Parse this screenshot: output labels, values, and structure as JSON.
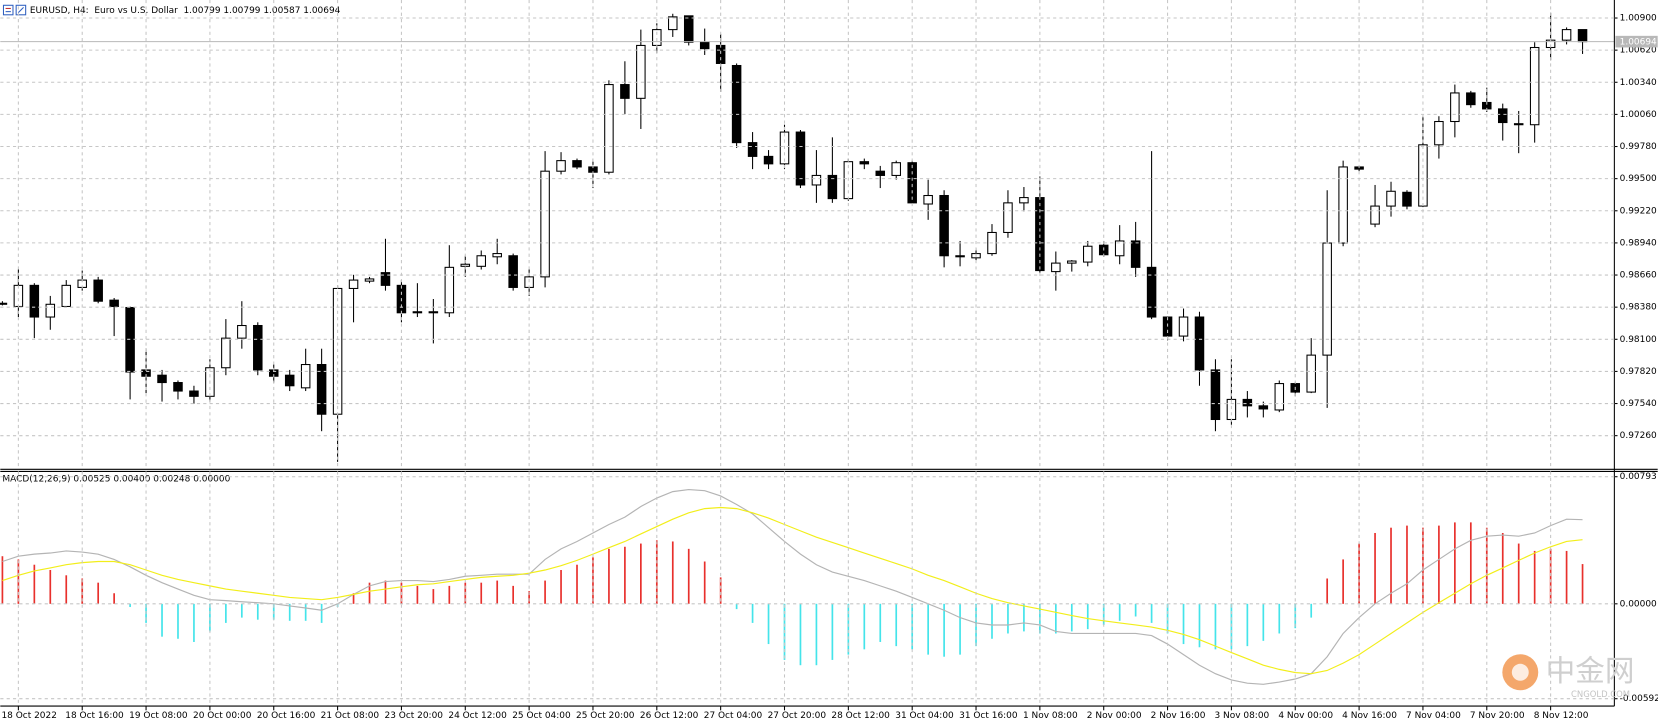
{
  "chart_data": [
    {
      "type": "candlestick",
      "title": "EURUSD, H4:  Euro vs U.S. Dollar  1.00799 1.00799 1.00587 1.00694",
      "categories": [
        null,
        "18 Oct 2022",
        null,
        null,
        null,
        "18 Oct 16:00",
        null,
        null,
        null,
        "19 Oct 08:00",
        null,
        null,
        null,
        "20 Oct 00:00",
        null,
        null,
        null,
        "20 Oct 16:00",
        null,
        null,
        null,
        "21 Oct 08:00",
        null,
        null,
        null,
        "23 Oct 20:00",
        null,
        null,
        null,
        "24 Oct 12:00",
        null,
        null,
        null,
        "25 Oct 04:00",
        null,
        null,
        null,
        "25 Oct 20:00",
        null,
        null,
        null,
        "26 Oct 12:00",
        null,
        null,
        null,
        "27 Oct 04:00",
        null,
        null,
        null,
        "27 Oct 20:00",
        null,
        null,
        null,
        "28 Oct 12:00",
        null,
        null,
        null,
        "31 Oct 04:00",
        null,
        null,
        null,
        "31 Oct 16:00",
        null,
        null,
        null,
        "1 Nov 08:00",
        null,
        null,
        null,
        "2 Nov 00:00",
        null,
        null,
        null,
        "2 Nov 16:00",
        null,
        null,
        null,
        "3 Nov 08:00",
        null,
        null,
        null,
        "4 Nov 00:00",
        null,
        null,
        null,
        "4 Nov 16:00",
        null,
        null,
        null,
        "7 Nov 04:00",
        null,
        null,
        null,
        "7 Nov 20:00",
        null,
        null,
        null,
        "8 Nov 12:00",
        null,
        null
      ],
      "open": [
        0.98414,
        0.98386,
        0.9857,
        0.98294,
        0.98386,
        0.98552,
        0.98616,
        0.98441,
        0.98377,
        0.97833,
        0.97787,
        0.97723,
        0.97649,
        0.97603,
        0.97852,
        0.9811,
        0.9822,
        0.97833,
        0.97787,
        0.97677,
        0.9788,
        0.97447,
        0.98543,
        0.98607,
        0.98681,
        0.9857,
        0.9834,
        0.98331,
        0.98331,
        0.98736,
        0.98736,
        0.98819,
        0.98828,
        0.98552,
        0.98644,
        0.99565,
        0.99657,
        0.99602,
        0.99556,
        1.0032,
        1.002,
        1.00661,
        1.00799,
        1.00919,
        1.00689,
        1.00661,
        1.00486,
        0.99814,
        0.99694,
        0.99629,
        0.99906,
        0.99445,
        0.99528,
        0.99326,
        0.99648,
        0.99565,
        0.99528,
        0.99639,
        0.99279,
        0.99353,
        0.98828,
        0.9881,
        0.98847,
        0.99031,
        0.99289,
        0.99335,
        0.9869,
        0.98764,
        0.98773,
        0.9892,
        0.98828,
        0.98957,
        0.98727,
        0.98294,
        0.98128,
        0.98294,
        0.97833,
        0.97401,
        0.97576,
        0.9752,
        0.97484,
        0.97714,
        0.9764,
        0.97962,
        0.98939,
        0.99602,
        0.99104,
        0.99261,
        0.99381,
        0.99261,
        0.99795,
        0.99998,
        1.00247,
        1.00164,
        1.00108,
        0.99979,
        0.9997,
        1.00643,
        1.00707,
        1.00799
      ],
      "high": [
        0.98432,
        0.98708,
        0.98589,
        0.98478,
        0.98616,
        0.98699,
        0.98644,
        0.9846,
        0.98386,
        0.98018,
        0.97833,
        0.97741,
        0.97695,
        0.97926,
        0.98276,
        0.98432,
        0.98248,
        0.9788,
        0.97833,
        0.98018,
        0.98018,
        0.9857,
        0.98662,
        0.98644,
        0.98976,
        0.98616,
        0.98589,
        0.98451,
        0.9892,
        0.98828,
        0.98874,
        0.98976,
        0.98847,
        0.98708,
        0.9974,
        0.99731,
        0.99675,
        0.99675,
        1.00357,
        1.00523,
        1.00799,
        1.00854,
        1.00937,
        1.00919,
        1.00808,
        1.00762,
        1.00504,
        0.99906,
        0.99749,
        0.9997,
        0.99924,
        0.99749,
        0.9986,
        0.99675,
        0.99675,
        0.99611,
        0.99657,
        0.99657,
        0.99491,
        0.99399,
        0.98957,
        0.98893,
        0.99104,
        0.99399,
        0.99427,
        0.99519,
        0.98865,
        0.98791,
        0.98957,
        0.98957,
        0.99095,
        0.99123,
        0.9974,
        0.98294,
        0.98368,
        0.9834,
        0.97926,
        0.97926,
        0.97649,
        0.97557,
        0.97741,
        0.97723,
        0.9811,
        0.99399,
        0.99657,
        0.99611,
        0.99445,
        0.99473,
        0.99399,
        1.00044,
        1.00044,
        1.0032,
        1.00265,
        1.00293,
        1.00154,
        1.0009,
        1.00689,
        1.00946,
        1.00818,
        1.00799
      ],
      "low": [
        0.98395,
        0.98294,
        0.9811,
        0.98183,
        0.98386,
        0.98524,
        0.98414,
        0.98128,
        0.97576,
        0.97631,
        0.97557,
        0.97576,
        0.97539,
        0.97557,
        0.97787,
        0.98018,
        0.97787,
        0.97723,
        0.97649,
        0.97649,
        0.97299,
        0.97032,
        0.98248,
        0.98589,
        0.98524,
        0.98248,
        0.98294,
        0.98064,
        0.98294,
        0.98644,
        0.98708,
        0.98754,
        0.98524,
        0.98478,
        0.98552,
        0.99537,
        0.99583,
        0.99418,
        0.99537,
        1.00062,
        0.99933,
        1.00596,
        1.00735,
        1.00661,
        1.00578,
        1.00256,
        0.99768,
        0.99583,
        0.99583,
        0.99583,
        0.99418,
        0.99289,
        0.99289,
        0.99307,
        0.99583,
        0.99418,
        0.99491,
        0.99279,
        0.99141,
        0.98727,
        0.98736,
        0.98782,
        0.98828,
        0.98985,
        0.99215,
        0.98681,
        0.98524,
        0.9869,
        0.98736,
        0.98819,
        0.98754,
        0.98644,
        0.98276,
        0.98091,
        0.98082,
        0.97695,
        0.97299,
        0.97355,
        0.97419,
        0.97419,
        0.97465,
        0.97603,
        0.97631,
        0.97502,
        0.98911,
        0.99565,
        0.99077,
        0.99169,
        0.99233,
        0.99252,
        0.99675,
        0.9986,
        1.00118,
        1.00081,
        0.99832,
        0.99722,
        0.99814,
        1.00532,
        1.0067,
        1.00587
      ],
      "close": [
        0.98405,
        0.9857,
        0.98294,
        0.98405,
        0.9857,
        0.98616,
        0.98432,
        0.98386,
        0.97815,
        0.97778,
        0.97723,
        0.97649,
        0.97603,
        0.97852,
        0.9811,
        0.9822,
        0.97833,
        0.97778,
        0.97695,
        0.9788,
        0.97447,
        0.98543,
        0.98616,
        0.98626,
        0.9857,
        0.98331,
        0.98331,
        0.9834,
        0.98727,
        0.98754,
        0.98828,
        0.98847,
        0.98552,
        0.98644,
        0.99565,
        0.99657,
        0.99602,
        0.99556,
        1.0032,
        1.002,
        1.00661,
        1.00799,
        1.0091,
        1.00689,
        1.00633,
        1.00504,
        0.99814,
        0.99694,
        0.99629,
        0.99906,
        0.99445,
        0.99528,
        0.99326,
        0.99648,
        0.99629,
        0.99528,
        0.99639,
        0.99289,
        0.99353,
        0.98828,
        0.98819,
        0.98847,
        0.99031,
        0.99289,
        0.99335,
        0.98699,
        0.98764,
        0.98782,
        0.98911,
        0.98837,
        0.98957,
        0.98727,
        0.98294,
        0.98128,
        0.98294,
        0.97833,
        0.97401,
        0.97576,
        0.9752,
        0.97493,
        0.97714,
        0.9764,
        0.97962,
        0.98939,
        0.99602,
        0.99583,
        0.99261,
        0.9939,
        0.99261,
        0.99795,
        0.99998,
        1.00247,
        1.00145,
        1.00108,
        0.99989,
        0.9997,
        1.00643,
        1.00707,
        1.00799,
        1.00694
      ],
      "up_color": "#ffffff",
      "down_color": "#000000",
      "wick_color": "#000000",
      "ylim": [
        0.96976,
        1.01057
      ],
      "yticks": [
        {
          "value": 1.009,
          "label": "1.00900"
        },
        {
          "value": 1.0062,
          "label": "1.00620"
        },
        {
          "value": 1.0034,
          "label": "1.00340"
        },
        {
          "value": 1.0006,
          "label": "1.00060"
        },
        {
          "value": 0.9978,
          "label": "0.99780"
        },
        {
          "value": 0.995,
          "label": "0.99500"
        },
        {
          "value": 0.9922,
          "label": "0.99220"
        },
        {
          "value": 0.9894,
          "label": "0.98940"
        },
        {
          "value": 0.9866,
          "label": "0.98660"
        },
        {
          "value": 0.9838,
          "label": "0.98380"
        },
        {
          "value": 0.981,
          "label": "0.98100"
        },
        {
          "value": 0.9782,
          "label": "0.97820"
        },
        {
          "value": 0.9754,
          "label": "0.97540"
        },
        {
          "value": 0.9726,
          "label": "0.97260"
        }
      ],
      "last_price": {
        "value": 1.00694,
        "label": "1.00694"
      },
      "grid": true
    },
    {
      "type": "macd",
      "title": "MACD(12,26,9) 0.00525 0.00400 0.00248 0.00000",
      "histogram": {
        "positive_color": "#e8302c",
        "negative_color": "#44e4ea",
        "values": [
          0.00297,
          0.00277,
          0.00244,
          0.00211,
          0.00178,
          0.00158,
          0.00132,
          0.00066,
          -0.0002,
          -0.00119,
          -0.00205,
          -0.00218,
          -0.00238,
          -0.00172,
          -0.00119,
          -0.00086,
          -0.00099,
          -0.00099,
          -0.00106,
          -0.00106,
          -0.00119,
          -0.0002,
          0.00066,
          0.00132,
          0.00145,
          0.00132,
          0.00112,
          0.00092,
          0.00112,
          0.00132,
          0.00132,
          0.00145,
          0.00112,
          0.00079,
          0.00145,
          0.00211,
          0.00244,
          0.0029,
          0.00343,
          0.00356,
          0.00376,
          0.00396,
          0.00389,
          0.00343,
          0.00264,
          0.00165,
          -0.00033,
          -0.00119,
          -0.00251,
          -0.0035,
          -0.00383,
          -0.00383,
          -0.0035,
          -0.00317,
          -0.00284,
          -0.00238,
          -0.00264,
          -0.00284,
          -0.00317,
          -0.0033,
          -0.00317,
          -0.00264,
          -0.00218,
          -0.00185,
          -0.00172,
          -0.00185,
          -0.00185,
          -0.00172,
          -0.00158,
          -0.00132,
          -0.00106,
          -0.00079,
          -0.00119,
          -0.00185,
          -0.00251,
          -0.00271,
          -0.00284,
          -0.00284,
          -0.00264,
          -0.00231,
          -0.00185,
          -0.00152,
          -0.00086,
          0.00158,
          0.00277,
          0.00376,
          0.00442,
          0.00475,
          0.00488,
          0.00475,
          0.00488,
          0.00508,
          0.00508,
          0.00475,
          0.00442,
          0.00376,
          0.0033,
          0.00343,
          0.0033,
          0.00248
        ]
      },
      "series": [
        {
          "color": "#b4b4b4",
          "values": [
            0.00264,
            0.00297,
            0.0031,
            0.00317,
            0.0033,
            0.00323,
            0.0031,
            0.00277,
            0.00231,
            0.00178,
            0.00132,
            0.00092,
            0.00053,
            0.00026,
            0.0002,
            0.00013,
            7e-05,
            0,
            -0.00013,
            -0.00026,
            -0.0004,
            0,
            0.00059,
            0.00112,
            0.00139,
            0.00145,
            0.00145,
            0.00139,
            0.00152,
            0.00172,
            0.00178,
            0.00185,
            0.00185,
            0.00185,
            0.00277,
            0.00343,
            0.00389,
            0.00442,
            0.00495,
            0.00541,
            0.00607,
            0.0066,
            0.007,
            0.00713,
            0.00706,
            0.00673,
            0.0062,
            0.00561,
            0.00475,
            0.00389,
            0.0031,
            0.00244,
            0.00198,
            0.00172,
            0.00145,
            0.00112,
            0.00079,
            0.0004,
            0,
            -0.0004,
            -0.00086,
            -0.00119,
            -0.00132,
            -0.00132,
            -0.00119,
            -0.00132,
            -0.00172,
            -0.00185,
            -0.00185,
            -0.00185,
            -0.00185,
            -0.00185,
            -0.00198,
            -0.00251,
            -0.00317,
            -0.00383,
            -0.00436,
            -0.00475,
            -0.00495,
            -0.00502,
            -0.00488,
            -0.00469,
            -0.00436,
            -0.0033,
            -0.00185,
            -0.00086,
            0,
            0.00066,
            0.00125,
            0.00211,
            0.00277,
            0.00343,
            0.00396,
            0.00422,
            0.00429,
            0.00422,
            0.00442,
            0.00488,
            0.00528,
            0.00525
          ]
        },
        {
          "color": "#f2ee1a",
          "values": [
            0.00145,
            0.00178,
            0.00205,
            0.00224,
            0.00244,
            0.00257,
            0.00264,
            0.00264,
            0.00244,
            0.00211,
            0.00178,
            0.00152,
            0.00132,
            0.00112,
            0.00092,
            0.00079,
            0.00066,
            0.00053,
            0.0004,
            0.00033,
            0.00026,
            0.0004,
            0.00059,
            0.00079,
            0.00092,
            0.00106,
            0.00119,
            0.00125,
            0.00139,
            0.00152,
            0.00165,
            0.00172,
            0.00178,
            0.00191,
            0.00211,
            0.00238,
            0.00271,
            0.0031,
            0.0035,
            0.00389,
            0.00436,
            0.00482,
            0.00528,
            0.00568,
            0.00594,
            0.00601,
            0.00594,
            0.00568,
            0.00535,
            0.00495,
            0.00455,
            0.00416,
            0.00383,
            0.0035,
            0.00317,
            0.00284,
            0.00251,
            0.00218,
            0.00178,
            0.00145,
            0.00106,
            0.00066,
            0.00033,
            7e-05,
            -0.00013,
            -0.00033,
            -0.00053,
            -0.00073,
            -0.00092,
            -0.00106,
            -0.00119,
            -0.00132,
            -0.00145,
            -0.00165,
            -0.00191,
            -0.00224,
            -0.00264,
            -0.00304,
            -0.00343,
            -0.00383,
            -0.00409,
            -0.00429,
            -0.00436,
            -0.00416,
            -0.0037,
            -0.00317,
            -0.00251,
            -0.00185,
            -0.00119,
            -0.00053,
            7e-05,
            0.00066,
            0.00125,
            0.00178,
            0.00224,
            0.00271,
            0.00317,
            0.00356,
            0.00389,
            0.004
          ]
        }
      ],
      "ylim": [
        -0.00638,
        0.00826
      ],
      "yticks": [
        0.00793,
        {
          "value": 0,
          "label": "0.00000"
        },
        -0.00592
      ],
      "grid": true
    }
  ],
  "watermark": {
    "title": "中金网",
    "subtitle": "CNGOLD.COM"
  }
}
